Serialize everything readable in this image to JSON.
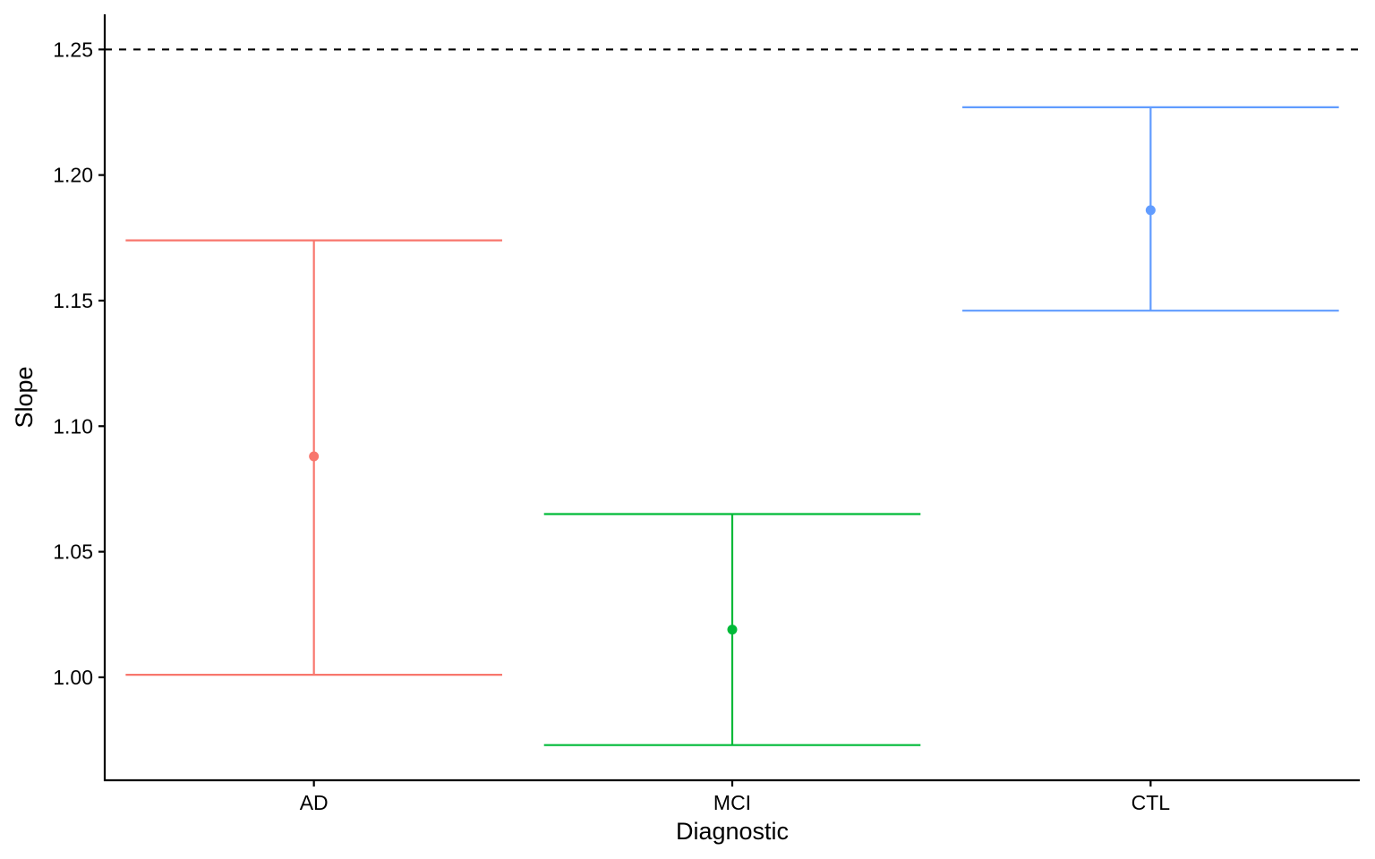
{
  "chart_data": {
    "type": "errorbar",
    "xlabel": "Diagnostic",
    "ylabel": "Slope",
    "categories": [
      "AD",
      "MCI",
      "CTL"
    ],
    "series": [
      {
        "category": "AD",
        "estimate": 1.088,
        "lower": 1.001,
        "upper": 1.174,
        "color": "#F8766D"
      },
      {
        "category": "MCI",
        "estimate": 1.019,
        "lower": 0.973,
        "upper": 1.065,
        "color": "#00BA38"
      },
      {
        "category": "CTL",
        "estimate": 1.186,
        "lower": 1.146,
        "upper": 1.227,
        "color": "#619CFF"
      }
    ],
    "yticks": [
      "1.00",
      "1.05",
      "1.10",
      "1.15",
      "1.20",
      "1.25"
    ],
    "ylim": [
      0.959,
      1.264
    ],
    "reference_line": {
      "y": 1.25,
      "style": "dashed",
      "color": "#000000"
    },
    "grid": false,
    "legend": "none"
  }
}
